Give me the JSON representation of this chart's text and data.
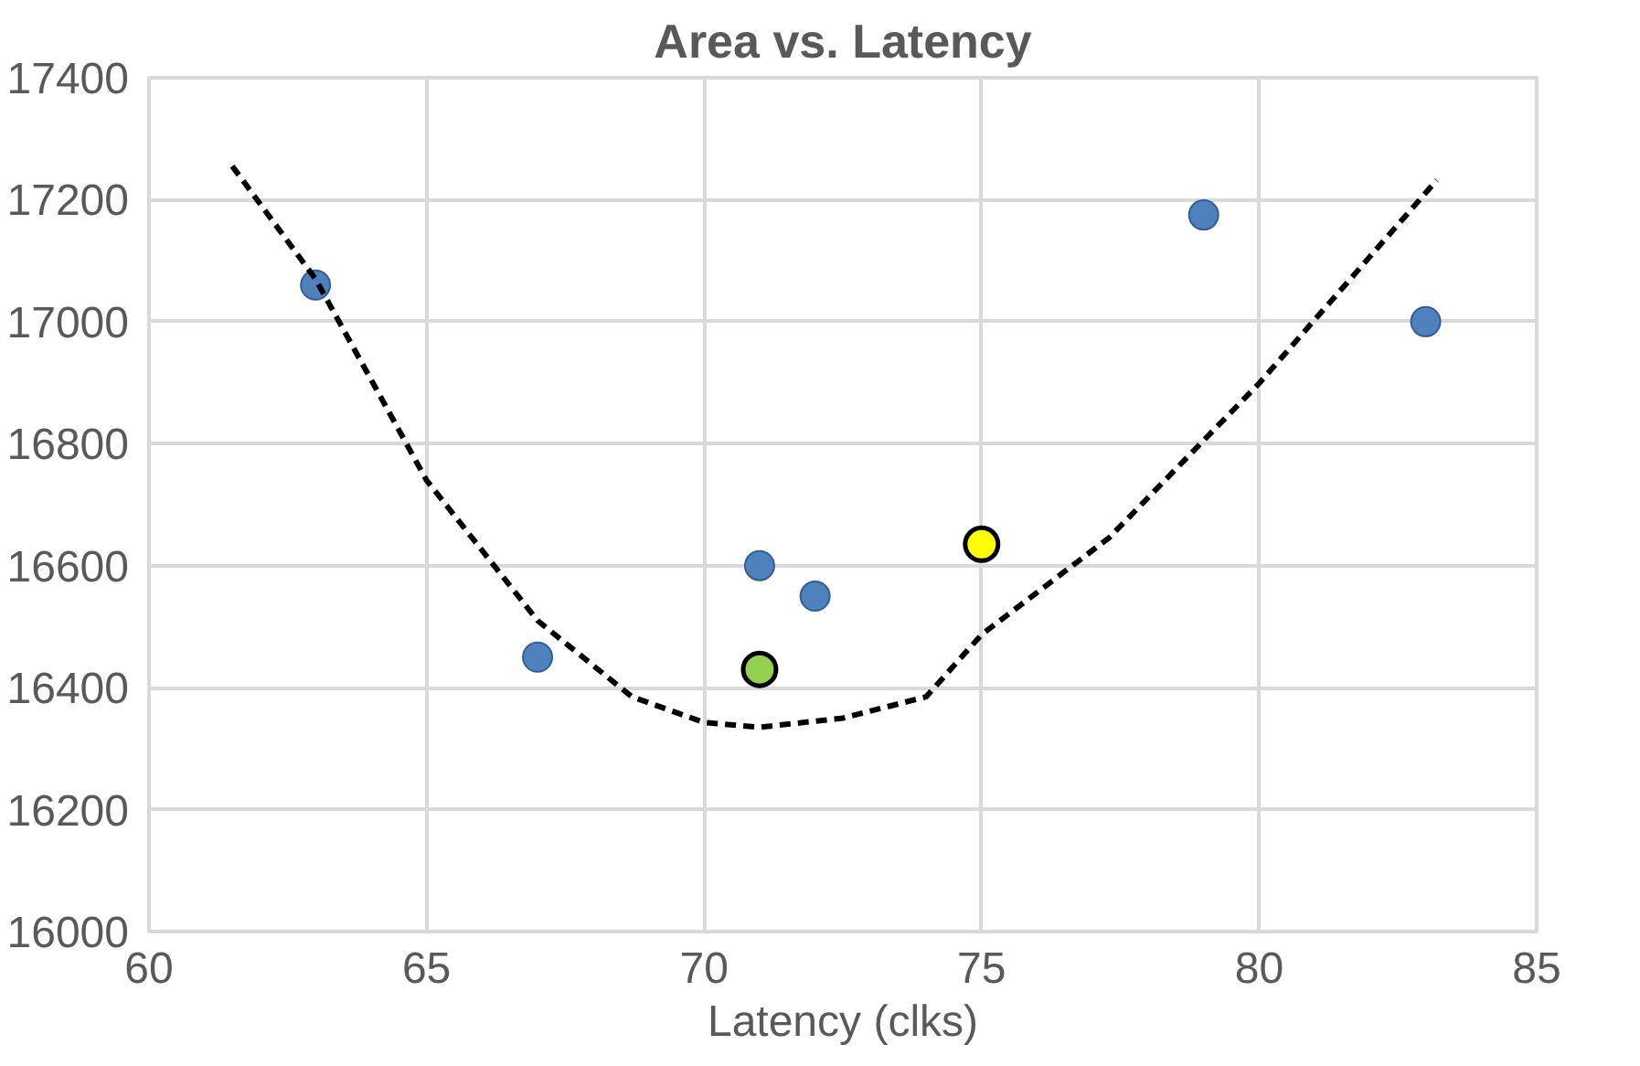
{
  "chart_data": {
    "type": "scatter",
    "title": "Area vs. Latency",
    "xlabel": "Latency (clks)",
    "xlim": [
      60,
      85
    ],
    "xticks": [
      60,
      65,
      70,
      75,
      80,
      85
    ],
    "ylim": [
      16000,
      17400
    ],
    "yticks": [
      16000,
      16200,
      16400,
      16600,
      16800,
      17000,
      17200,
      17400
    ],
    "grid": true,
    "marker": "circle",
    "series": [
      {
        "color": "#4f81bd",
        "x": [
          63,
          67,
          71,
          72,
          79,
          83
        ],
        "values": [
          17060,
          16450,
          16600,
          16550,
          17175,
          17000
        ]
      },
      {
        "color": "#92d050",
        "x": [
          71
        ],
        "values": [
          16430
        ]
      },
      {
        "color": "#ffff00",
        "x": [
          75
        ],
        "values": [
          16635
        ]
      },
      {
        "type": "line",
        "color": "#000000",
        "line_style": "dashed",
        "marker": "none",
        "x": [
          61.5,
          63,
          65,
          67,
          68.7,
          70,
          71,
          72.5,
          74,
          75,
          77.3,
          80,
          83.2
        ],
        "values": [
          17255,
          17070,
          16740,
          16510,
          16385,
          16343,
          16335,
          16350,
          16385,
          16487,
          16646,
          16899,
          17232
        ]
      }
    ]
  }
}
